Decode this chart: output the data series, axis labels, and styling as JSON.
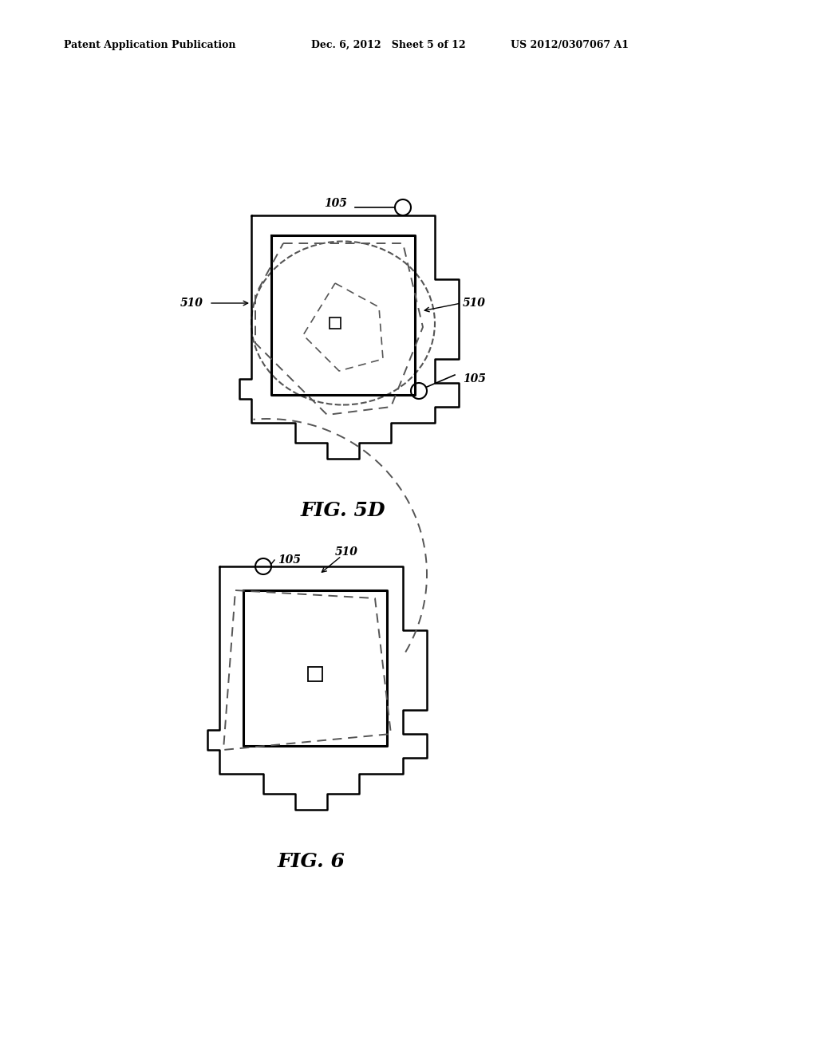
{
  "header_left": "Patent Application Publication",
  "header_mid": "Dec. 6, 2012   Sheet 5 of 12",
  "header_right": "US 2012/0307067 A1",
  "fig5d_label": "FIG. 5D",
  "fig6_label": "FIG. 6",
  "bg_color": "#ffffff",
  "line_color": "#000000",
  "dashed_color": "#555555"
}
